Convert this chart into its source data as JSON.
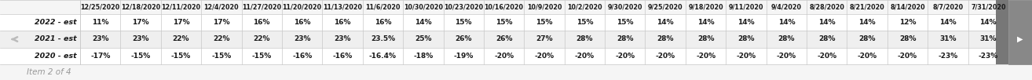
{
  "columns": [
    "12/25/2020",
    "12/18/2020",
    "12/11/2020",
    "12/4/2020",
    "11/27/2020",
    "11/20/2020",
    "11/13/2020",
    "11/6/2020",
    "10/30/2020",
    "10/23/2020",
    "10/16/2020",
    "10/9/2020",
    "10/2/2020",
    "9/30/2020",
    "9/25/2020",
    "9/18/2020",
    "9/11/2020",
    "9/4/2020",
    "8/28/2020",
    "8/21/2020",
    "8/14/2020",
    "8/7/2020",
    "7/31/2020"
  ],
  "rows": {
    "2022 - est": [
      "11%",
      "17%",
      "17%",
      "17%",
      "16%",
      "16%",
      "16%",
      "16%",
      "14%",
      "15%",
      "15%",
      "15%",
      "15%",
      "15%",
      "14%",
      "14%",
      "14%",
      "14%",
      "14%",
      "14%",
      "12%",
      "14%",
      "14%"
    ],
    "2021 - est": [
      "23%",
      "23%",
      "22%",
      "22%",
      "22%",
      "23%",
      "23%",
      "23.5%",
      "25%",
      "26%",
      "26%",
      "27%",
      "28%",
      "28%",
      "28%",
      "28%",
      "28%",
      "28%",
      "28%",
      "28%",
      "28%",
      "31%",
      "31%"
    ],
    "2020 - est": [
      "-17%",
      "-15%",
      "-15%",
      "-15%",
      "-15%",
      "-16%",
      "-16%",
      "-16.4%",
      "-18%",
      "-19%",
      "-20%",
      "-20%",
      "-20%",
      "-20%",
      "-20%",
      "-20%",
      "-20%",
      "-20%",
      "-20%",
      "-20%",
      "-20%",
      "-23%",
      "-23%"
    ]
  },
  "row_labels": [
    "2022 - est",
    "2021 - est",
    "2020 - est"
  ],
  "footer": "Item 2 of 4",
  "bg_color": "#f5f5f5",
  "cell_bg_white": "#ffffff",
  "cell_bg_gray": "#efefef",
  "border_color": "#c8c8c8",
  "text_color": "#1a1a1a",
  "header_font_size": 5.8,
  "cell_font_size": 6.5,
  "row_label_font_size": 6.8,
  "footer_font_size": 7.5,
  "nav_arrow_color": "#bbbbbb",
  "right_nav_bg": "#888888",
  "right_nav_hidden_bg": "#aaaaaa"
}
